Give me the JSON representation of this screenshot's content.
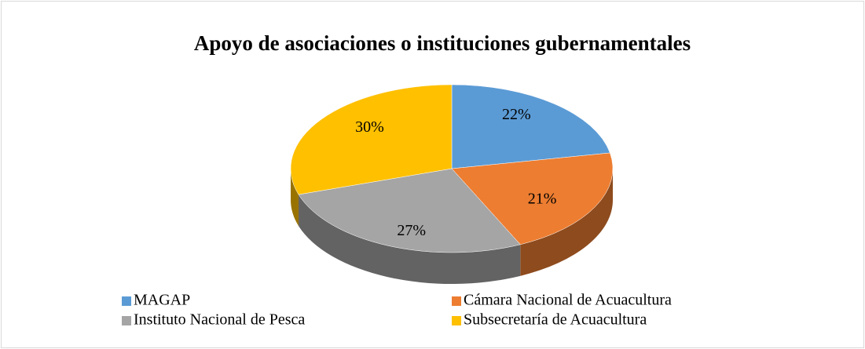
{
  "chart_data": {
    "type": "pie",
    "title": "Apoyo de asociaciones o instituciones gubernamentales",
    "categories": [
      "MAGAP",
      "Cámara Nacional de Acuacultura",
      "Instituto Nacional de Pesca",
      "Subsecretaría de Acuacultura"
    ],
    "values": [
      22,
      21,
      27,
      30
    ],
    "value_labels": [
      "22%",
      "21%",
      "27%",
      "30%"
    ],
    "colors": [
      "#5b9bd5",
      "#ed7d31",
      "#a5a5a5",
      "#ffc000"
    ],
    "legend": "bottom"
  }
}
